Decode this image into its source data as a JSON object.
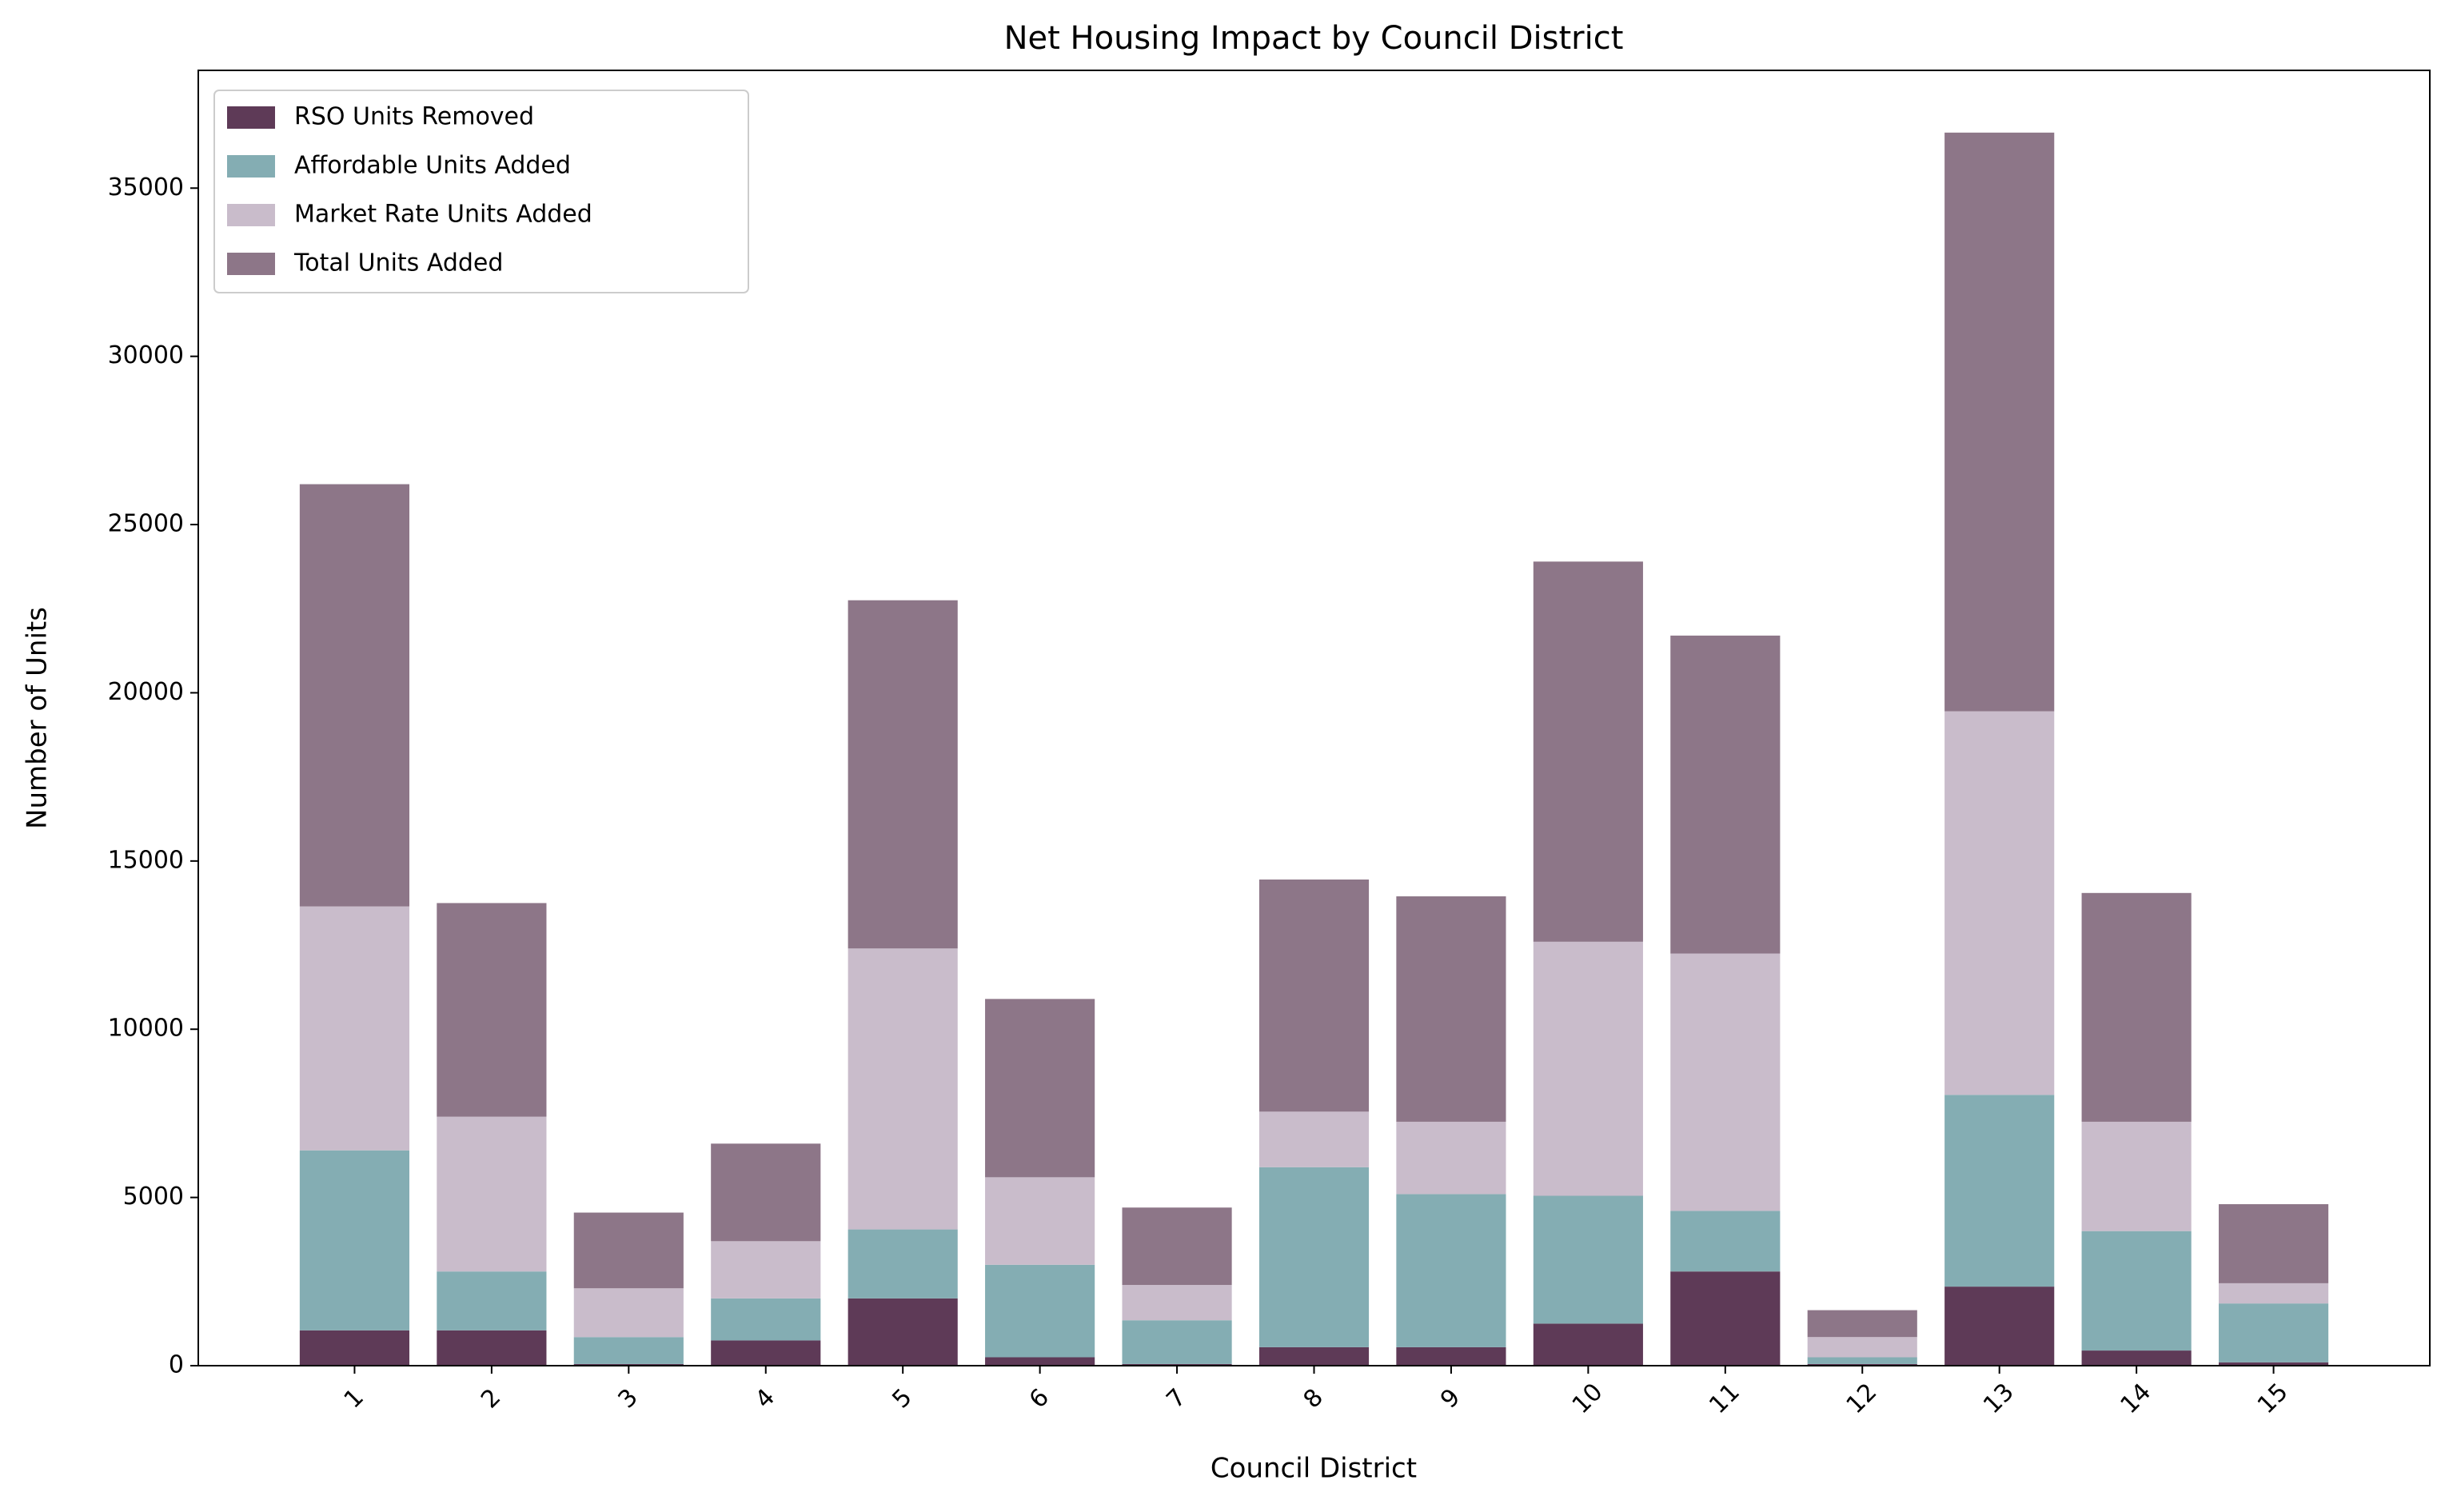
{
  "chart_data": {
    "type": "bar",
    "stacked": true,
    "title": "Net Housing Impact by Council District",
    "xlabel": "Council District",
    "ylabel": "Number of Units",
    "categories": [
      "1",
      "2",
      "3",
      "4",
      "5",
      "6",
      "7",
      "8",
      "9",
      "10",
      "11",
      "12",
      "13",
      "14",
      "15"
    ],
    "series": [
      {
        "name": "RSO Units Removed",
        "color": "#5e3a57",
        "values": [
          1050,
          1050,
          50,
          750,
          2000,
          250,
          50,
          550,
          550,
          1250,
          2800,
          50,
          2350,
          450,
          100
        ]
      },
      {
        "name": "Affordable Units Added",
        "color": "#84adb3",
        "values": [
          5350,
          1750,
          800,
          1250,
          2050,
          2750,
          1300,
          5350,
          4550,
          3800,
          1800,
          200,
          5700,
          3550,
          1750
        ]
      },
      {
        "name": "Market Rate Units Added",
        "color": "#c9bccb",
        "values": [
          7250,
          4600,
          1450,
          1700,
          8350,
          2600,
          1050,
          1650,
          2150,
          7550,
          7650,
          600,
          11400,
          3250,
          600
        ]
      },
      {
        "name": "Total Units Added",
        "color": "#8d7688",
        "values": [
          12550,
          6350,
          2250,
          2900,
          10350,
          5300,
          2300,
          6900,
          6700,
          11300,
          9450,
          800,
          17200,
          6800,
          2350
        ]
      }
    ],
    "ylim": [
      0,
      38500
    ],
    "yticks": [
      0,
      5000,
      10000,
      15000,
      20000,
      25000,
      30000,
      35000
    ],
    "grid": false,
    "legend": "upper left"
  }
}
